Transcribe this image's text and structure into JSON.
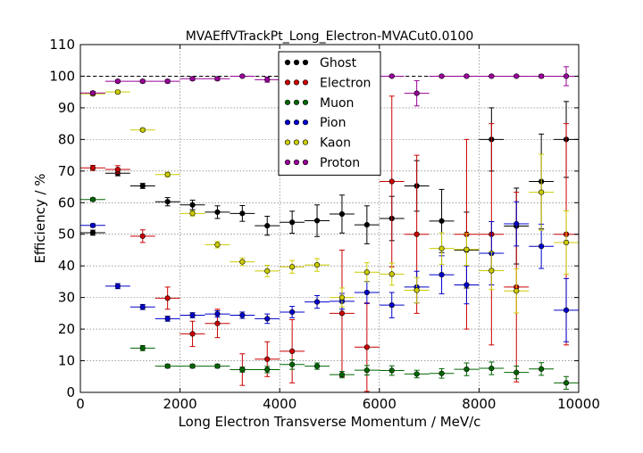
{
  "chart_data": {
    "type": "scatter",
    "title": "MVAEffVTrackPt_Long_Electron-MVACut0.0100",
    "xlabel": "Long Electron Transverse Momentum / MeV/c",
    "ylabel": "Efficiency / %",
    "xlim": [
      0,
      10000
    ],
    "ylim": [
      0,
      110
    ],
    "xticks": [
      0,
      2000,
      4000,
      6000,
      8000,
      10000
    ],
    "yticks": [
      0,
      10,
      20,
      30,
      40,
      50,
      60,
      70,
      80,
      90,
      100,
      110
    ],
    "grid": true,
    "legend_position": "top-center",
    "bin_half_width": 250,
    "reference_line": 100,
    "x": [
      250,
      750,
      1250,
      1750,
      2250,
      2750,
      3250,
      3750,
      4250,
      4750,
      5250,
      5750,
      6250,
      6750,
      7250,
      7750,
      8250,
      8750,
      9250,
      9750
    ],
    "series": [
      {
        "name": "Ghost",
        "color": "#000000",
        "values": [
          50.5,
          69.3,
          65.3,
          60.3,
          59.3,
          57.0,
          56.6,
          52.7,
          53.8,
          54.3,
          56.4,
          53.0,
          55.0,
          65.3,
          54.2,
          45.0,
          80.0,
          52.6,
          66.7,
          80.0
        ],
        "errors": [
          0.8,
          0.8,
          0.8,
          1.3,
          1.5,
          2.0,
          2.5,
          3.0,
          3.5,
          5.0,
          6.0,
          6.0,
          7.0,
          8.0,
          10.0,
          12.0,
          10.0,
          12.0,
          15.0,
          12.0
        ]
      },
      {
        "name": "Electron",
        "color": "#cc0000",
        "values": [
          71.0,
          70.5,
          49.4,
          29.8,
          18.5,
          21.8,
          7.2,
          10.5,
          13.0,
          null,
          25.0,
          14.3,
          66.7,
          50.0,
          null,
          50.0,
          50.0,
          33.3,
          null,
          50.0
        ],
        "errors": [
          0.8,
          1.2,
          2.0,
          3.5,
          4.0,
          4.5,
          5.0,
          5.5,
          10.0,
          null,
          20.0,
          14.0,
          27.0,
          25.0,
          null,
          30.0,
          35.0,
          30.0,
          null,
          35.0
        ]
      },
      {
        "name": "Muon",
        "color": "#006600",
        "values": [
          61.0,
          null,
          14.0,
          8.3,
          8.3,
          8.3,
          7.2,
          7.2,
          8.8,
          8.3,
          5.6,
          7.0,
          6.9,
          5.8,
          6.0,
          7.3,
          7.6,
          6.3,
          7.4,
          3.0
        ],
        "errors": [
          0.5,
          null,
          0.8,
          0.6,
          0.6,
          0.6,
          0.8,
          1.0,
          1.5,
          1.0,
          1.0,
          1.5,
          1.5,
          1.2,
          1.5,
          2.0,
          2.0,
          2.0,
          2.0,
          2.0
        ]
      },
      {
        "name": "Pion",
        "color": "#0000cc",
        "values": [
          52.8,
          33.6,
          27.0,
          23.3,
          24.4,
          24.8,
          24.4,
          23.3,
          25.4,
          28.6,
          28.8,
          31.6,
          27.6,
          33.3,
          37.2,
          34.0,
          44.0,
          53.3,
          46.2,
          26.0
        ],
        "errors": [
          0.5,
          0.8,
          0.8,
          0.8,
          0.8,
          1.0,
          1.0,
          1.5,
          1.8,
          2.0,
          2.5,
          3.5,
          4.0,
          5.0,
          6.0,
          6.0,
          10.0,
          7.0,
          7.0,
          10.0
        ]
      },
      {
        "name": "Kaon",
        "color": "#cccc00",
        "values": [
          94.4,
          95.0,
          83.0,
          68.9,
          56.6,
          46.7,
          41.3,
          38.4,
          39.7,
          40.3,
          30.0,
          38.0,
          37.4,
          32.3,
          45.5,
          45.2,
          38.5,
          32.1,
          63.3,
          47.4
        ],
        "errors": [
          0.5,
          0.5,
          0.5,
          0.7,
          0.8,
          1.0,
          1.2,
          1.8,
          2.0,
          2.0,
          3.0,
          3.0,
          3.5,
          4.0,
          5.0,
          5.0,
          6.0,
          7.0,
          12.0,
          10.0
        ]
      },
      {
        "name": "Proton",
        "color": "#990099",
        "values": [
          94.7,
          98.4,
          98.4,
          98.4,
          99.2,
          99.2,
          100.0,
          98.9,
          100.0,
          100.0,
          100.0,
          100.0,
          100.0,
          94.6,
          100.0,
          100.0,
          100.0,
          100.0,
          100.0,
          100.0
        ],
        "errors": [
          0.5,
          0.4,
          0.4,
          0.5,
          0.5,
          0.5,
          0.3,
          0.8,
          0.3,
          0.3,
          0.3,
          0.3,
          0.3,
          4.0,
          0.3,
          0.3,
          0.3,
          0.3,
          0.5,
          3.0
        ]
      }
    ]
  }
}
